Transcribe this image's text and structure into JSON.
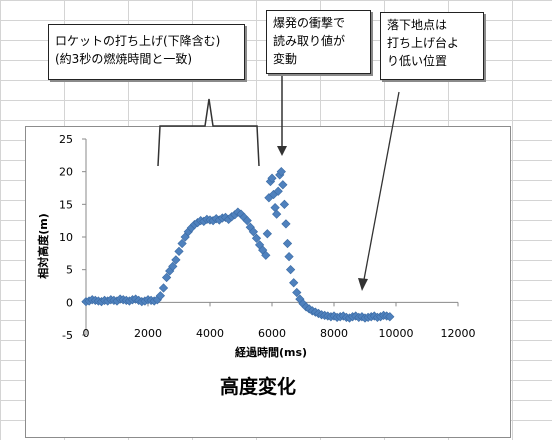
{
  "colors": {
    "marker": "#4f81bd",
    "marker_stroke": "#3a6aa3",
    "grid_line": "#d4d4d4",
    "frame_border": "#8c8c8c",
    "callout_border": "#222222",
    "arrow": "#333333"
  },
  "callouts": [
    {
      "lines": [
        "ロケットの打ち上げ(下降含む)",
        "(約3秒の燃焼時間と一致)"
      ]
    },
    {
      "lines": [
        "爆発の衝撃で",
        "読み取り値が",
        "変動"
      ]
    },
    {
      "lines": [
        "落下地点は",
        "打ち上げ台よ",
        "り低い位置"
      ]
    }
  ],
  "chart_data": {
    "type": "scatter",
    "title": "高度変化",
    "xlabel": "経過時間(ms)",
    "ylabel": "相対高度(m)",
    "xlim": [
      0,
      12000
    ],
    "ylim": [
      -5,
      25
    ],
    "xticks": [
      0,
      2000,
      4000,
      6000,
      8000,
      10000,
      12000
    ],
    "yticks": [
      -5,
      0,
      5,
      10,
      15,
      20,
      25
    ],
    "grid": false,
    "legend": "none",
    "marker": "diamond",
    "series": [
      {
        "points": [
          [
            0,
            0.1
          ],
          [
            100,
            0.2
          ],
          [
            200,
            0.4
          ],
          [
            300,
            0.3
          ],
          [
            400,
            0.2
          ],
          [
            500,
            0.1
          ],
          [
            600,
            0.3
          ],
          [
            700,
            0.2
          ],
          [
            800,
            0.4
          ],
          [
            900,
            0.3
          ],
          [
            1000,
            0.2
          ],
          [
            1100,
            0.5
          ],
          [
            1200,
            0.4
          ],
          [
            1300,
            0.3
          ],
          [
            1400,
            0.2
          ],
          [
            1500,
            0.4
          ],
          [
            1600,
            0.5
          ],
          [
            1700,
            0.3
          ],
          [
            1800,
            0.1
          ],
          [
            1900,
            0.2
          ],
          [
            2000,
            0.4
          ],
          [
            2100,
            0.3
          ],
          [
            2200,
            0.2
          ],
          [
            2300,
            0.4
          ],
          [
            2400,
            1.0
          ],
          [
            2500,
            2.2
          ],
          [
            2600,
            3.8
          ],
          [
            2700,
            4.8
          ],
          [
            2800,
            5.5
          ],
          [
            2900,
            6.5
          ],
          [
            3000,
            7.8
          ],
          [
            3100,
            9.0
          ],
          [
            3200,
            10.0
          ],
          [
            3300,
            10.8
          ],
          [
            3400,
            11.4
          ],
          [
            3500,
            11.9
          ],
          [
            3600,
            12.2
          ],
          [
            3700,
            12.5
          ],
          [
            3800,
            12.4
          ],
          [
            3900,
            12.7
          ],
          [
            4000,
            12.6
          ],
          [
            4100,
            12.5
          ],
          [
            4200,
            12.8
          ],
          [
            4300,
            12.6
          ],
          [
            4400,
            12.9
          ],
          [
            4500,
            13.0
          ],
          [
            4600,
            12.7
          ],
          [
            4700,
            13.1
          ],
          [
            4800,
            13.4
          ],
          [
            4900,
            13.8
          ],
          [
            5000,
            13.5
          ],
          [
            5100,
            13.0
          ],
          [
            5200,
            12.5
          ],
          [
            5300,
            11.5
          ],
          [
            5400,
            10.8
          ],
          [
            5500,
            9.8
          ],
          [
            5600,
            8.8
          ],
          [
            5700,
            8.0
          ],
          [
            5800,
            7.2
          ],
          [
            5850,
            10.5
          ],
          [
            5900,
            16.0
          ],
          [
            5950,
            18.5
          ],
          [
            6000,
            19.0
          ],
          [
            6050,
            16.5
          ],
          [
            6100,
            14.5
          ],
          [
            6150,
            13.5
          ],
          [
            6200,
            17.0
          ],
          [
            6250,
            19.5
          ],
          [
            6300,
            20.0
          ],
          [
            6350,
            18.0
          ],
          [
            6400,
            15.0
          ],
          [
            6450,
            12.0
          ],
          [
            6500,
            9.0
          ],
          [
            6550,
            7.0
          ],
          [
            6600,
            5.0
          ],
          [
            6700,
            3.0
          ],
          [
            6800,
            1.5
          ],
          [
            6900,
            0.5
          ],
          [
            7000,
            -0.2
          ],
          [
            7100,
            -0.7
          ],
          [
            7200,
            -1.0
          ],
          [
            7300,
            -1.3
          ],
          [
            7400,
            -1.5
          ],
          [
            7500,
            -1.7
          ],
          [
            7600,
            -1.9
          ],
          [
            7700,
            -2.0
          ],
          [
            7800,
            -2.1
          ],
          [
            7900,
            -2.2
          ],
          [
            8000,
            -2.1
          ],
          [
            8100,
            -2.3
          ],
          [
            8200,
            -2.2
          ],
          [
            8300,
            -2.1
          ],
          [
            8400,
            -2.3
          ],
          [
            8500,
            -2.4
          ],
          [
            8600,
            -2.2
          ],
          [
            8700,
            -2.1
          ],
          [
            8800,
            -2.3
          ],
          [
            8900,
            -2.2
          ],
          [
            9000,
            -2.4
          ],
          [
            9100,
            -2.3
          ],
          [
            9200,
            -2.2
          ],
          [
            9300,
            -2.1
          ],
          [
            9400,
            -2.3
          ],
          [
            9500,
            -2.2
          ],
          [
            9600,
            -2.0
          ],
          [
            9700,
            -2.1
          ],
          [
            9800,
            -2.2
          ]
        ]
      }
    ]
  }
}
